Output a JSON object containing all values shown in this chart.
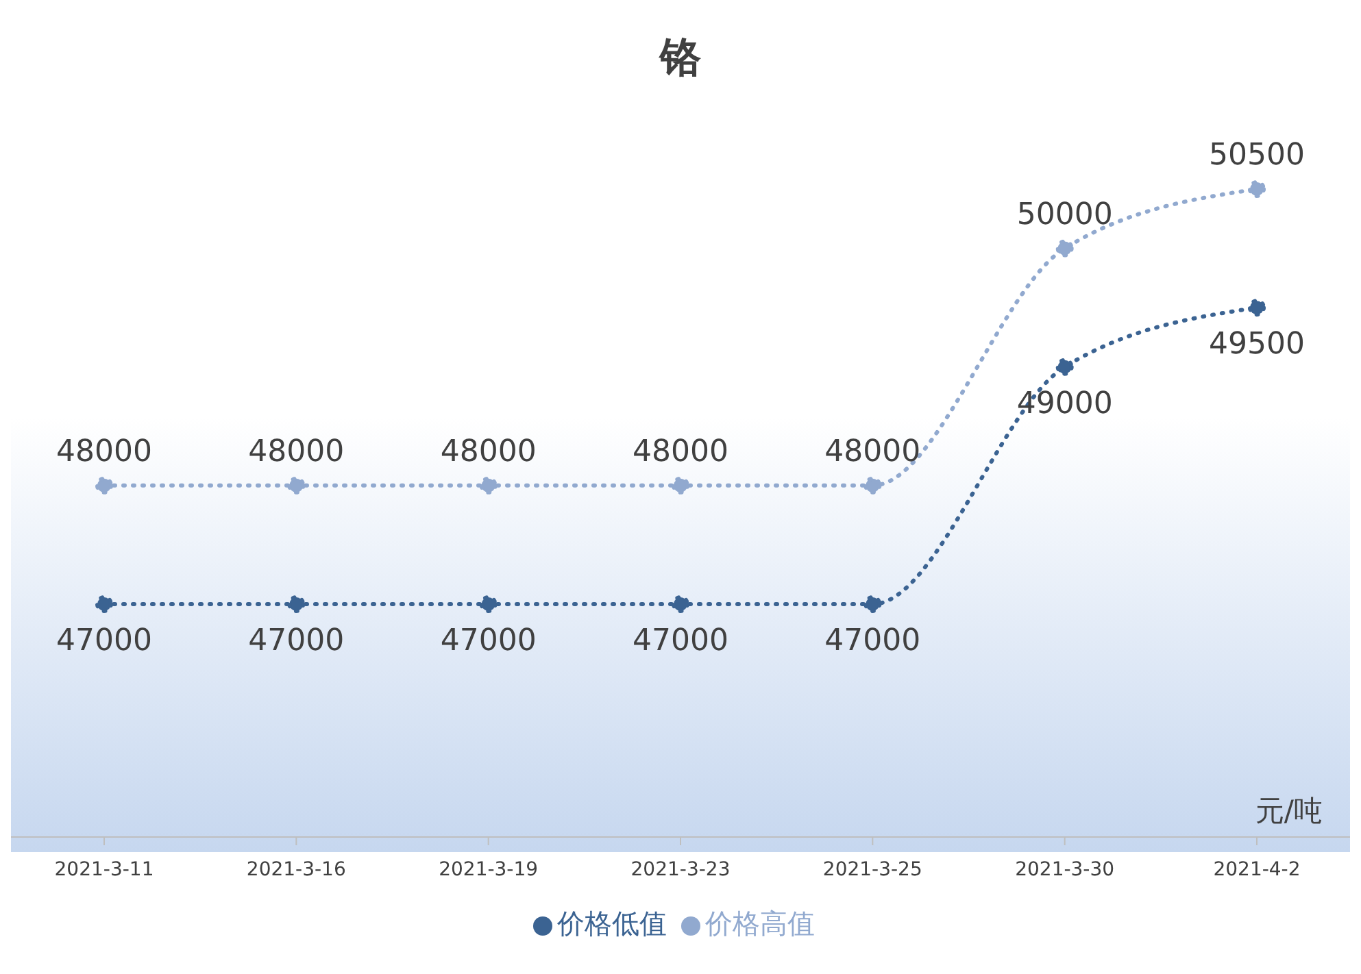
{
  "chart_data": {
    "type": "line",
    "title": "铬",
    "categories": [
      "2021-3-11",
      "2021-3-16",
      "2021-3-19",
      "2021-3-23",
      "2021-3-25",
      "2021-3-30",
      "2021-4-2"
    ],
    "series": [
      {
        "name": "价格低值",
        "color": "#3b6392",
        "values": [
          47000,
          47000,
          47000,
          47000,
          47000,
          49000,
          49500
        ]
      },
      {
        "name": "价格高值",
        "color": "#91a9cf",
        "values": [
          48000,
          48000,
          48000,
          48000,
          48000,
          50000,
          50500
        ]
      }
    ],
    "annotations": [
      "元/吨"
    ],
    "data_labels": true,
    "legend": "bottom",
    "marker": "circle",
    "line_style": "dotted",
    "grid": false
  }
}
